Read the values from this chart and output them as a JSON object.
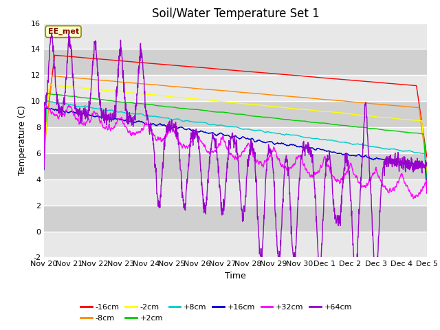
{
  "title": "Soil/Water Temperature Set 1",
  "xlabel": "Time",
  "ylabel": "Temperature (C)",
  "ylim": [
    -2,
    16
  ],
  "xlim": [
    0,
    15
  ],
  "xtick_labels": [
    "Nov 20",
    "Nov 21",
    "Nov 22",
    "Nov 23",
    "Nov 24",
    "Nov 25",
    "Nov 26",
    "Nov 27",
    "Nov 28",
    "Nov 29",
    "Nov 30",
    "Dec 1",
    "Dec 2",
    "Dec 3",
    "Dec 4",
    "Dec 5"
  ],
  "ytick_labels": [
    "-2",
    "0",
    "2",
    "4",
    "6",
    "8",
    "10",
    "12",
    "14",
    "16"
  ],
  "annotation": "EE_met",
  "colors": {
    "-16cm": "#ff0000",
    "-8cm": "#ff8800",
    "-2cm": "#ffff00",
    "+2cm": "#00cc00",
    "+8cm": "#00cccc",
    "+16cm": "#0000cc",
    "+32cm": "#ff00ff",
    "+64cm": "#9900cc"
  },
  "legend_labels": [
    "-16cm",
    "-8cm",
    "-2cm",
    "+2cm",
    "+8cm",
    "+16cm",
    "+32cm",
    "+64cm"
  ],
  "band_colors": [
    "#e8e8e8",
    "#d0d0d0"
  ],
  "title_fontsize": 12,
  "axis_label_fontsize": 9,
  "tick_fontsize": 8
}
